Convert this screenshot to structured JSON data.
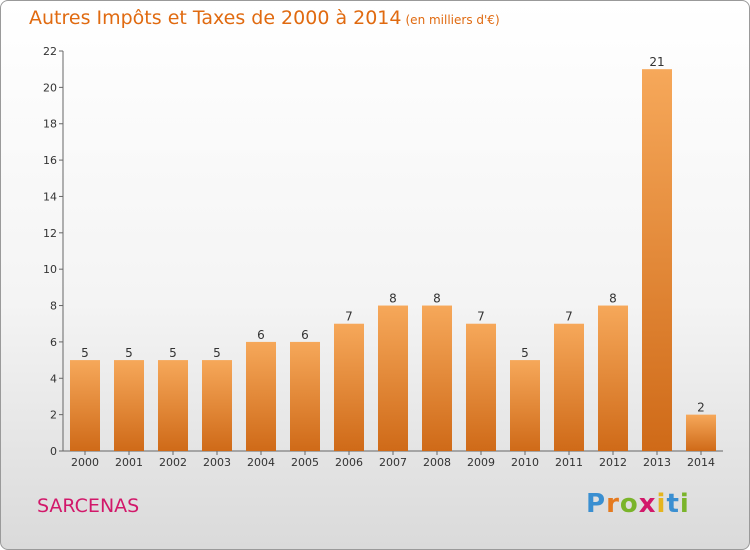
{
  "title": "Autres Impôts et Taxes de 2000 à 2014",
  "subtitle": "(en milliers d'€)",
  "place": "SARCENAS",
  "logo": {
    "letters": [
      "P",
      "r",
      "o",
      "x",
      "i",
      "t",
      "i"
    ],
    "colors": [
      "#3a8fd1",
      "#e57a1f",
      "#7ab42a",
      "#d2186a",
      "#e5b51f",
      "#3a8fd1",
      "#7ab42a"
    ]
  },
  "colors": {
    "bar_top": "#f6a85a",
    "bar_bottom": "#cf6a18",
    "title": "#e06a10",
    "place": "#d2186a"
  },
  "chart_data": {
    "type": "bar",
    "categories": [
      "2000",
      "2001",
      "2002",
      "2003",
      "2004",
      "2005",
      "2006",
      "2007",
      "2008",
      "2009",
      "2010",
      "2011",
      "2012",
      "2013",
      "2014"
    ],
    "values": [
      5,
      5,
      5,
      5,
      6,
      6,
      7,
      8,
      8,
      7,
      5,
      7,
      8,
      21,
      2
    ],
    "data_labels": [
      "5",
      "5",
      "5",
      "5",
      "6",
      "6",
      "7",
      "8",
      "8",
      "7",
      "5",
      "7",
      "8",
      "21",
      "2"
    ],
    "ylim": [
      0,
      22
    ],
    "yticks": [
      0,
      2,
      4,
      6,
      8,
      10,
      12,
      14,
      16,
      18,
      20,
      22
    ],
    "grid": false,
    "xlabel": "",
    "ylabel": ""
  }
}
